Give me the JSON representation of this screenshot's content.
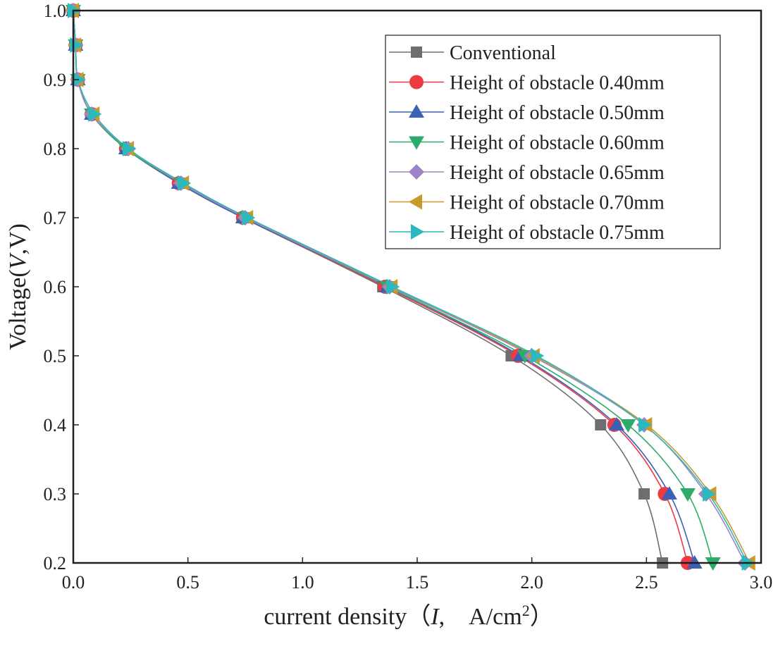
{
  "chart_data": {
    "type": "line",
    "title": "",
    "xlabel": {
      "prefix": "current density（",
      "var": "I",
      "sep": ",　",
      "unit": "A/cm",
      "sup": "2",
      "suffix": "）"
    },
    "ylabel": {
      "prefix": "Voltage(",
      "var": "V",
      "suffix": ",V)"
    },
    "xlim": [
      0,
      3.0
    ],
    "ylim": [
      0.2,
      1.0
    ],
    "xticks": [
      "0.0",
      "0.5",
      "1.0",
      "1.5",
      "2.0",
      "2.5",
      "3.0"
    ],
    "yticks": [
      "0.2",
      "0.3",
      "0.4",
      "0.5",
      "0.6",
      "0.7",
      "0.8",
      "0.9",
      "1.0"
    ],
    "grid": false,
    "legend_position": "top-right",
    "y": [
      1.0,
      0.95,
      0.9,
      0.85,
      0.8,
      0.75,
      0.7,
      0.6,
      0.5,
      0.4,
      0.3,
      0.2
    ],
    "series": [
      {
        "name": "Conventional",
        "color": "#6d6e71",
        "marker": "square",
        "x": [
          0.0,
          0.01,
          0.02,
          0.08,
          0.23,
          0.46,
          0.74,
          1.35,
          1.91,
          2.3,
          2.49,
          2.57
        ]
      },
      {
        "name": "Height of obstacle 0.40mm",
        "color": "#ee3a43",
        "marker": "circle",
        "x": [
          0.0,
          0.01,
          0.02,
          0.08,
          0.23,
          0.46,
          0.74,
          1.36,
          1.94,
          2.36,
          2.58,
          2.68
        ]
      },
      {
        "name": "Height of obstacle 0.50mm",
        "color": "#3a61b4",
        "marker": "triangle-up",
        "x": [
          0.0,
          0.01,
          0.02,
          0.08,
          0.23,
          0.46,
          0.74,
          1.37,
          1.95,
          2.37,
          2.6,
          2.71
        ]
      },
      {
        "name": "Height of obstacle 0.60mm",
        "color": "#2eab6a",
        "marker": "triangle-down",
        "x": [
          0.0,
          0.01,
          0.02,
          0.08,
          0.23,
          0.47,
          0.75,
          1.37,
          1.97,
          2.42,
          2.68,
          2.79
        ]
      },
      {
        "name": "Height of obstacle 0.65mm",
        "color": "#9f84c3",
        "marker": "diamond",
        "x": [
          0.0,
          0.01,
          0.02,
          0.08,
          0.24,
          0.47,
          0.75,
          1.38,
          2.0,
          2.49,
          2.76,
          2.93
        ]
      },
      {
        "name": "Height of obstacle 0.70mm",
        "color": "#c89a2c",
        "marker": "triangle-left",
        "x": [
          0.0,
          0.01,
          0.02,
          0.09,
          0.24,
          0.48,
          0.76,
          1.39,
          2.01,
          2.5,
          2.78,
          2.95
        ]
      },
      {
        "name": "Height of obstacle 0.75mm",
        "color": "#2ab9bd",
        "marker": "triangle-right",
        "x": [
          0.0,
          0.01,
          0.02,
          0.09,
          0.24,
          0.48,
          0.76,
          1.39,
          2.02,
          2.49,
          2.77,
          2.94
        ]
      }
    ]
  }
}
